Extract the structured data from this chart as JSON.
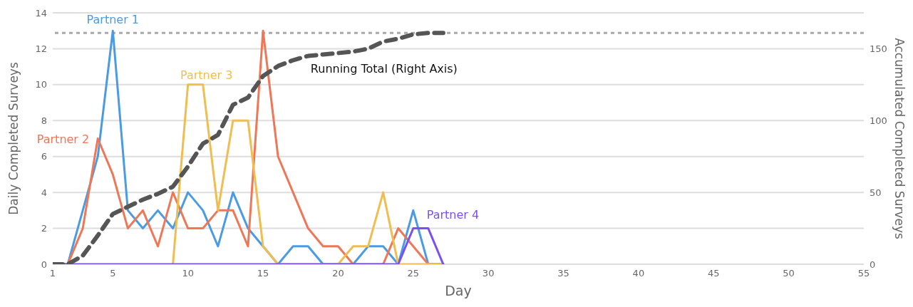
{
  "chart_data": {
    "type": "line",
    "xlabel": "Day",
    "ylabel": "Daily Completed Surveys",
    "y2label": "Accumulated Completed Surveys",
    "x": [
      1,
      2,
      3,
      4,
      5,
      6,
      7,
      8,
      9,
      10,
      11,
      12,
      13,
      14,
      15,
      16,
      17,
      18,
      19,
      20,
      21,
      22,
      23,
      24,
      25,
      26,
      27
    ],
    "series": [
      {
        "name": "Partner 1",
        "color": "#4a9be3",
        "values": [
          0,
          0,
          3,
          6,
          13,
          3,
          2,
          3,
          2,
          4,
          3,
          1,
          4,
          2,
          1,
          0,
          1,
          1,
          0,
          0,
          0,
          1,
          1,
          0,
          3,
          0,
          0
        ]
      },
      {
        "name": "Partner 2",
        "color": "#ef7656",
        "values": [
          0,
          0,
          2,
          7,
          5,
          2,
          3,
          1,
          4,
          2,
          2,
          3,
          3,
          1,
          13,
          6,
          4,
          2,
          1,
          1,
          0,
          0,
          0,
          2,
          1,
          0,
          0
        ]
      },
      {
        "name": "Partner 3",
        "color": "#f0bd50",
        "values": [
          null,
          null,
          null,
          null,
          null,
          null,
          null,
          null,
          0,
          10,
          10,
          3,
          8,
          8,
          1,
          0,
          0,
          0,
          0,
          0,
          1,
          1,
          4,
          0,
          0,
          0,
          0
        ]
      },
      {
        "name": "Partner 4",
        "color": "#7950f2",
        "values": [
          0,
          0,
          0,
          0,
          0,
          0,
          0,
          0,
          0,
          0,
          0,
          0,
          0,
          0,
          0,
          0,
          0,
          0,
          0,
          0,
          0,
          0,
          0,
          0,
          2,
          2,
          0
        ]
      },
      {
        "name": "Running Total (Right Axis)",
        "color": "#555555",
        "axis": "y2",
        "line_style": "dashed",
        "values": [
          0,
          0,
          6,
          20,
          35,
          40,
          45,
          49,
          54,
          68,
          84,
          90,
          111,
          116,
          131,
          138,
          142,
          145,
          146,
          147,
          148,
          150,
          155,
          157,
          160,
          161,
          161
        ]
      }
    ],
    "xlim": [
      1,
      55
    ],
    "xticks": [
      1,
      5,
      10,
      15,
      20,
      25,
      30,
      35,
      40,
      45,
      50,
      55
    ],
    "ylim": [
      0,
      14
    ],
    "yticks": [
      0,
      2,
      4,
      6,
      8,
      10,
      12,
      14
    ],
    "y2lim": [
      0,
      175
    ],
    "y2ticks": [
      0,
      50,
      100,
      150
    ],
    "ref_lines": [
      {
        "axis": "y2",
        "value": 161,
        "color": "#aaaaaa",
        "line_style": "dotted"
      }
    ],
    "grid": "y",
    "legend": false,
    "marker": "none",
    "line_style": "solid"
  }
}
